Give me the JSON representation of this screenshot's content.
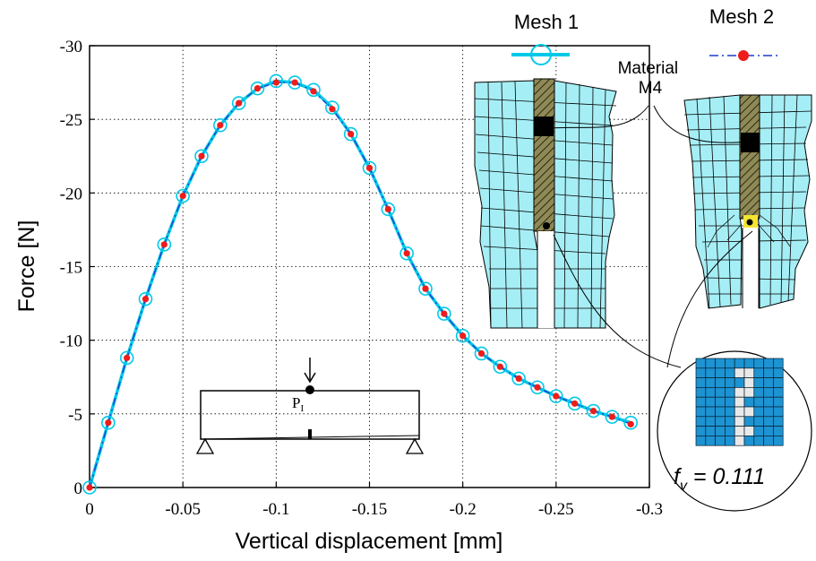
{
  "chart_data": {
    "type": "line",
    "xlabel": "Vertical displacement [mm]",
    "ylabel": "Force [N]",
    "xlim": [
      0,
      -0.3
    ],
    "ylim": [
      0,
      -30
    ],
    "xticks": [
      0,
      -0.05,
      -0.1,
      -0.15,
      -0.2,
      -0.25,
      -0.3
    ],
    "xtick_labels": [
      "0",
      "-0.05",
      "-0.1",
      "-0.15",
      "-0.2",
      "-0.25",
      "-0.3"
    ],
    "yticks": [
      0,
      -5,
      -10,
      -15,
      -20,
      -25,
      -30
    ],
    "ytick_labels": [
      "0",
      "-5",
      "-10",
      "-15",
      "-20",
      "-25",
      "-30"
    ],
    "grid": true,
    "series": [
      {
        "name": "Mesh 1",
        "color": "#00c8e8",
        "marker": "open-circle",
        "x": [
          0,
          -0.01,
          -0.02,
          -0.03,
          -0.04,
          -0.05,
          -0.06,
          -0.07,
          -0.08,
          -0.09,
          -0.1,
          -0.11,
          -0.12,
          -0.13,
          -0.14,
          -0.15,
          -0.16,
          -0.17,
          -0.18,
          -0.19,
          -0.2,
          -0.21,
          -0.22,
          -0.23,
          -0.24,
          -0.25,
          -0.26,
          -0.27,
          -0.28,
          -0.29
        ],
        "y": [
          0,
          -4.4,
          -8.8,
          -12.8,
          -16.5,
          -19.8,
          -22.5,
          -24.6,
          -26.1,
          -27.1,
          -27.6,
          -27.5,
          -27.0,
          -25.8,
          -24.0,
          -21.7,
          -18.9,
          -15.9,
          -13.5,
          -11.8,
          -10.3,
          -9.1,
          -8.2,
          -7.4,
          -6.8,
          -6.2,
          -5.7,
          -5.2,
          -4.8,
          -4.4
        ]
      },
      {
        "name": "Mesh 2",
        "color": "#ee1c1c",
        "marker": "filled-dot",
        "line_color": "#1a3fd0",
        "x": [
          0,
          -0.01,
          -0.02,
          -0.03,
          -0.04,
          -0.05,
          -0.06,
          -0.07,
          -0.08,
          -0.09,
          -0.1,
          -0.11,
          -0.12,
          -0.13,
          -0.14,
          -0.15,
          -0.16,
          -0.17,
          -0.18,
          -0.19,
          -0.2,
          -0.21,
          -0.22,
          -0.23,
          -0.24,
          -0.25,
          -0.26,
          -0.27,
          -0.28,
          -0.29
        ],
        "y": [
          0,
          -4.4,
          -8.8,
          -12.8,
          -16.5,
          -19.8,
          -22.5,
          -24.6,
          -26.1,
          -27.1,
          -27.5,
          -27.5,
          -26.9,
          -25.7,
          -24.0,
          -21.7,
          -18.9,
          -15.9,
          -13.5,
          -11.8,
          -10.3,
          -9.1,
          -8.2,
          -7.4,
          -6.8,
          -6.2,
          -5.7,
          -5.2,
          -4.8,
          -4.3
        ]
      }
    ],
    "legend": [
      {
        "label": "Mesh 1"
      },
      {
        "label": "Mesh 2"
      }
    ],
    "annotations": {
      "material_label": [
        "Material",
        "M4"
      ],
      "load_point_main": "P",
      "load_point_sub": "I",
      "fraction_symbol": "f",
      "fraction_sub": "v",
      "fraction_value": " = 0.111"
    }
  }
}
